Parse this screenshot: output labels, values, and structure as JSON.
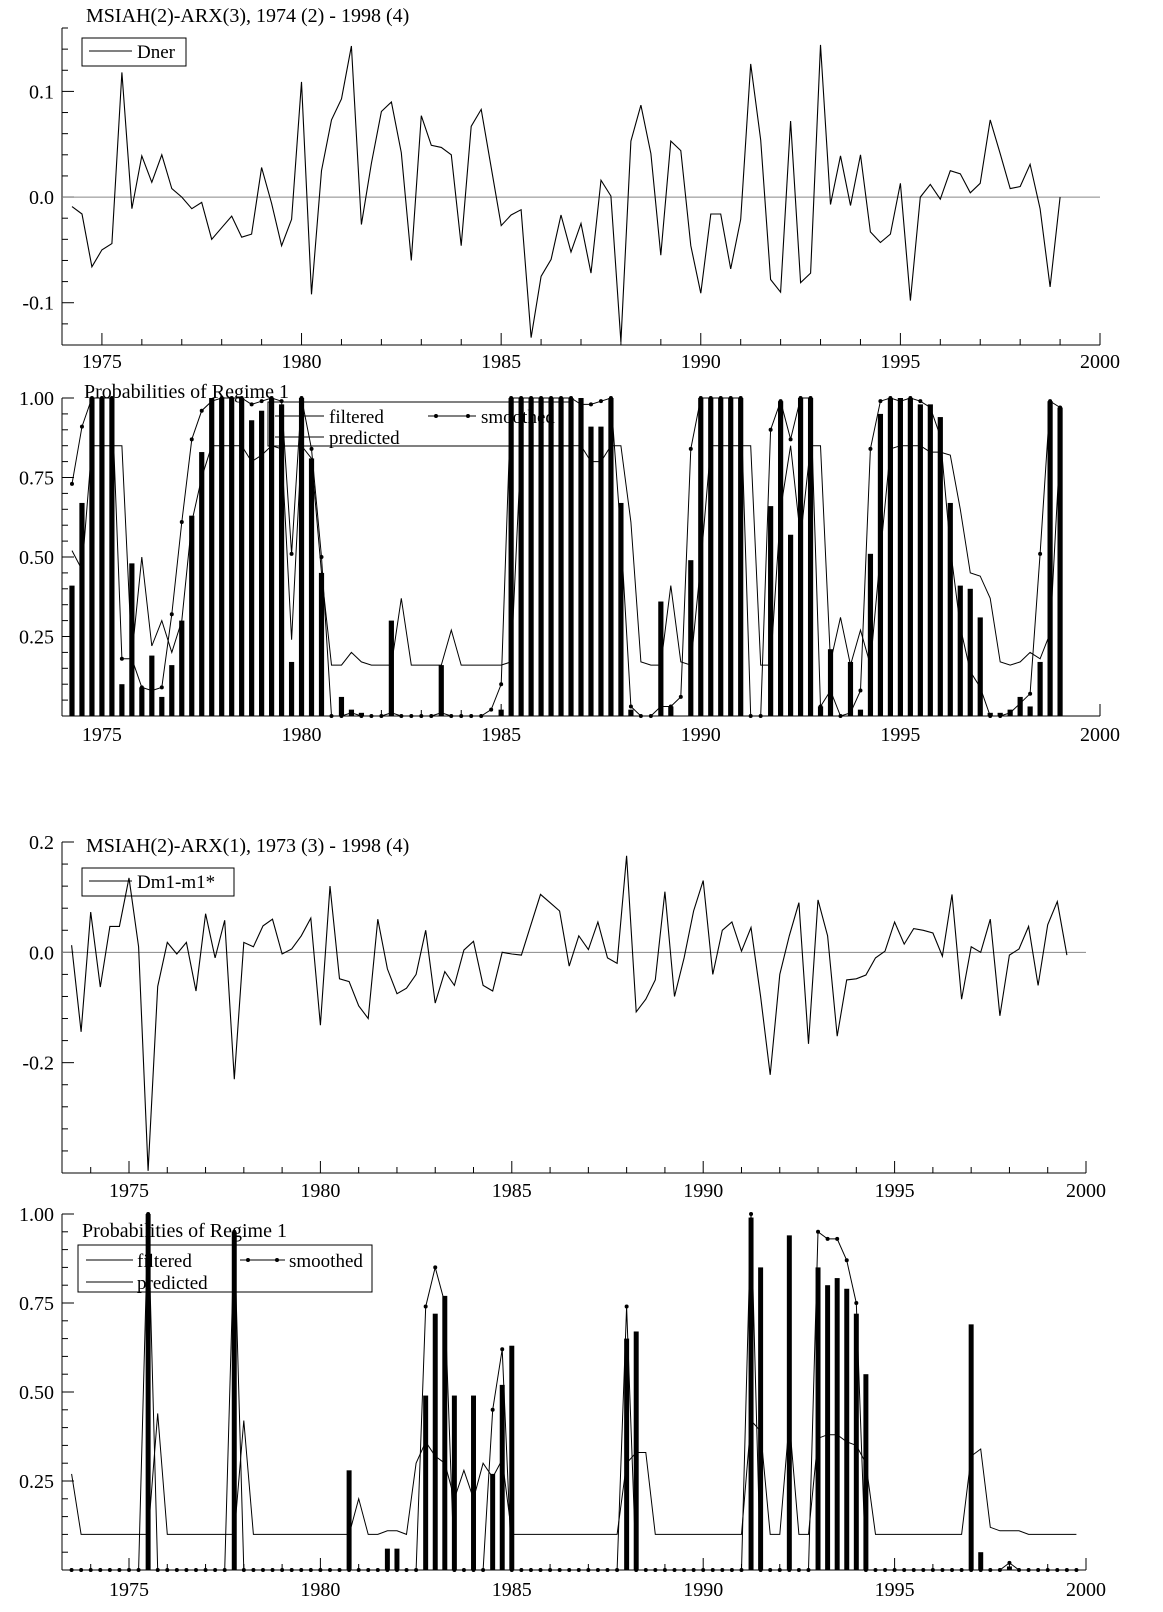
{
  "chart_data": [
    {
      "type": "line",
      "title": "MSIAH(2)-ARX(3), 1974 (2) - 1998 (4)",
      "series": [
        {
          "name": "Dner",
          "x_start": 1974.25,
          "x_step": 0.25,
          "values": [
            -0.009,
            -0.016,
            -0.066,
            -0.05,
            -0.044,
            0.118,
            -0.011,
            0.039,
            0.014,
            0.04,
            0.008,
            0.0,
            -0.011,
            -0.005,
            -0.04,
            -0.029,
            -0.018,
            -0.038,
            -0.035,
            0.028,
            -0.006,
            -0.046,
            -0.021,
            0.109,
            -0.092,
            0.025,
            0.073,
            0.093,
            0.143,
            -0.026,
            0.032,
            0.081,
            0.09,
            0.042,
            -0.06,
            0.077,
            0.049,
            0.047,
            0.04,
            -0.046,
            0.067,
            0.083,
            0.028,
            -0.027,
            -0.017,
            -0.012,
            -0.133,
            -0.075,
            -0.059,
            -0.017,
            -0.052,
            -0.025,
            -0.072,
            0.016,
            0.001,
            -0.137,
            0.053,
            0.087,
            0.041,
            -0.055,
            0.053,
            0.044,
            -0.046,
            -0.091,
            -0.016,
            -0.016,
            -0.068,
            -0.021,
            0.126,
            0.054,
            -0.078,
            -0.09,
            0.072,
            -0.081,
            -0.072,
            0.144,
            -0.007,
            0.039,
            -0.008,
            0.04,
            -0.033,
            -0.043,
            -0.035,
            0.013,
            -0.098,
            0.0,
            0.012,
            -0.002,
            0.025,
            0.022,
            0.004,
            0.013,
            0.073,
            0.041,
            0.008,
            0.01,
            0.031,
            -0.011,
            -0.085,
            0.0
          ]
        }
      ],
      "x_ticks": [
        "1975",
        "1980",
        "1985",
        "1990",
        "1995",
        "2000"
      ],
      "y_ticks": [
        "0.1",
        "0.0",
        "-0.1"
      ],
      "xlim": [
        1974,
        2000
      ],
      "ylim": [
        -0.14,
        0.16
      ]
    },
    {
      "type": "bar",
      "title": "Probabilities of Regime 1",
      "series": [
        {
          "name": "filtered",
          "x_start": 1974.25,
          "x_step": 0.25,
          "values": [
            0.41,
            0.67,
            1.0,
            1.0,
            1.0,
            0.1,
            0.48,
            0.09,
            0.19,
            0.06,
            0.16,
            0.3,
            0.63,
            0.83,
            1.0,
            1.0,
            1.0,
            1.0,
            0.93,
            0.96,
            1.0,
            0.98,
            0.17,
            1.0,
            0.81,
            0.45,
            0.0,
            0.06,
            0.02,
            0.01,
            0.0,
            0.0,
            0.3,
            0.0,
            0.0,
            0.0,
            0.0,
            0.16,
            0.0,
            0.0,
            0.0,
            0.0,
            0.0,
            0.02,
            1.0,
            1.0,
            1.0,
            1.0,
            1.0,
            1.0,
            1.0,
            1.0,
            0.91,
            0.91,
            1.0,
            0.67,
            0.02,
            0.0,
            0.0,
            0.36,
            0.03,
            0.0,
            0.49,
            1.0,
            1.0,
            1.0,
            1.0,
            1.0,
            0.0,
            0.0,
            0.66,
            0.99,
            0.57,
            1.0,
            1.0,
            0.03,
            0.21,
            0.0,
            0.17,
            0.02,
            0.51,
            0.95,
            1.0,
            1.0,
            1.0,
            0.98,
            0.98,
            0.94,
            0.67,
            0.41,
            0.4,
            0.31,
            0.01,
            0.01,
            0.02,
            0.06,
            0.03,
            0.17,
            0.99,
            0.97
          ]
        },
        {
          "name": "smoothed",
          "x_start": 1974.25,
          "x_step": 0.25,
          "values": [
            0.73,
            0.91,
            1.0,
            1.0,
            1.0,
            0.18,
            0.18,
            0.09,
            0.08,
            0.09,
            0.32,
            0.61,
            0.87,
            0.96,
            0.99,
            1.0,
            1.0,
            1.0,
            0.98,
            0.99,
            1.0,
            0.99,
            0.51,
            1.0,
            0.84,
            0.5,
            0.0,
            0.0,
            0.01,
            0.0,
            0.0,
            0.0,
            0.01,
            0.0,
            0.0,
            0.0,
            0.0,
            0.01,
            0.0,
            0.0,
            0.0,
            0.0,
            0.02,
            0.1,
            1.0,
            1.0,
            1.0,
            1.0,
            1.0,
            1.0,
            1.0,
            0.98,
            0.98,
            0.99,
            1.0,
            0.57,
            0.03,
            0.0,
            0.0,
            0.03,
            0.03,
            0.06,
            0.84,
            1.0,
            1.0,
            1.0,
            1.0,
            1.0,
            0.0,
            0.0,
            0.9,
            0.99,
            0.87,
            1.0,
            1.0,
            0.03,
            0.08,
            0.0,
            0.01,
            0.08,
            0.84,
            0.99,
            1.0,
            0.99,
            1.0,
            0.99,
            0.97,
            0.88,
            0.53,
            0.28,
            0.14,
            0.09,
            0.0,
            0.0,
            0.01,
            0.04,
            0.07,
            0.51,
            0.99,
            0.97
          ]
        },
        {
          "name": "predicted",
          "x_start": 1974.25,
          "x_step": 0.25,
          "values": [
            0.52,
            0.46,
            0.85,
            0.85,
            0.85,
            0.85,
            0.19,
            0.5,
            0.22,
            0.3,
            0.2,
            0.3,
            0.61,
            0.75,
            0.85,
            0.85,
            0.85,
            0.85,
            0.8,
            0.82,
            0.85,
            0.84,
            0.24,
            0.85,
            0.81,
            0.45,
            0.16,
            0.16,
            0.2,
            0.17,
            0.16,
            0.16,
            0.16,
            0.37,
            0.16,
            0.16,
            0.16,
            0.16,
            0.27,
            0.16,
            0.16,
            0.16,
            0.16,
            0.16,
            0.17,
            0.85,
            0.85,
            0.85,
            0.85,
            0.85,
            0.85,
            0.85,
            0.8,
            0.8,
            0.85,
            0.85,
            0.61,
            0.17,
            0.16,
            0.16,
            0.41,
            0.17,
            0.16,
            0.48,
            0.85,
            0.85,
            0.85,
            0.85,
            0.85,
            0.16,
            0.16,
            0.65,
            0.85,
            0.56,
            0.85,
            0.85,
            0.17,
            0.31,
            0.16,
            0.27,
            0.16,
            0.51,
            0.84,
            0.85,
            0.85,
            0.85,
            0.83,
            0.83,
            0.82,
            0.65,
            0.45,
            0.44,
            0.37,
            0.17,
            0.16,
            0.17,
            0.2,
            0.18,
            0.26,
            0.85
          ]
        }
      ],
      "x_ticks": [
        "1975",
        "1980",
        "1985",
        "1990",
        "1995",
        "2000"
      ],
      "y_ticks": [
        "1.00",
        "0.75",
        "0.50",
        "0.25"
      ],
      "xlim": [
        1974,
        2000
      ],
      "ylim": [
        0,
        1.0
      ]
    },
    {
      "type": "line",
      "title": "MSIAH(2)-ARX(1), 1973 (3) - 1998 (4)",
      "series": [
        {
          "name": "Dm1-m1*",
          "x_start": 1973.5,
          "x_step": 0.25,
          "values": [
            0.013,
            -0.144,
            0.073,
            -0.063,
            0.047,
            0.047,
            0.135,
            0.01,
            -0.396,
            -0.062,
            0.018,
            -0.003,
            0.018,
            -0.07,
            0.07,
            -0.01,
            0.058,
            -0.23,
            0.018,
            0.01,
            0.048,
            0.06,
            -0.003,
            0.006,
            0.03,
            0.062,
            -0.132,
            0.12,
            -0.048,
            -0.053,
            -0.097,
            -0.12,
            0.06,
            -0.03,
            -0.075,
            -0.065,
            -0.04,
            0.04,
            -0.092,
            -0.035,
            -0.06,
            0.004,
            0.02,
            -0.06,
            -0.07,
            0.0,
            -0.003,
            -0.005,
            0.05,
            0.105,
            0.09,
            0.075,
            -0.025,
            0.03,
            0.005,
            0.055,
            -0.01,
            -0.02,
            0.175,
            -0.108,
            -0.085,
            -0.05,
            0.11,
            -0.08,
            -0.01,
            0.075,
            0.13,
            -0.04,
            0.04,
            0.055,
            0.002,
            0.045,
            -0.08,
            -0.222,
            -0.04,
            0.03,
            0.09,
            -0.166,
            0.095,
            0.03,
            -0.152,
            -0.05,
            -0.048,
            -0.041,
            -0.01,
            0.002,
            0.055,
            0.015,
            0.043,
            0.04,
            0.035,
            -0.007,
            0.105,
            -0.085,
            0.01,
            0.0,
            0.06,
            -0.115,
            -0.005,
            0.006,
            0.047,
            -0.06,
            0.05,
            0.092,
            -0.005
          ]
        }
      ],
      "x_ticks": [
        "1975",
        "1980",
        "1985",
        "1990",
        "1995",
        "2000"
      ],
      "y_ticks": [
        "0.2",
        "0.0",
        "-0.2"
      ],
      "xlim": [
        1973.25,
        2000
      ],
      "ylim": [
        -0.4,
        0.2
      ]
    },
    {
      "type": "bar",
      "title": "Probabilities of Regime 1",
      "series": [
        {
          "name": "filtered",
          "x_start": 1973.5,
          "x_step": 0.25,
          "values": [
            0.0,
            0.0,
            0.0,
            0.0,
            0.0,
            0.0,
            0.0,
            0.0,
            1.0,
            0.0,
            0.0,
            0.0,
            0.0,
            0.0,
            0.0,
            0.0,
            0.0,
            0.95,
            0.0,
            0.0,
            0.0,
            0.0,
            0.0,
            0.0,
            0.0,
            0.0,
            0.0,
            0.0,
            0.0,
            0.28,
            0.0,
            0.0,
            0.0,
            0.06,
            0.06,
            0.0,
            0.0,
            0.49,
            0.72,
            0.77,
            0.49,
            0.0,
            0.49,
            0.0,
            0.27,
            0.52,
            0.63,
            0.0,
            0.0,
            0.0,
            0.0,
            0.0,
            0.0,
            0.0,
            0.0,
            0.0,
            0.0,
            0.0,
            0.65,
            0.67,
            0.0,
            0.0,
            0.0,
            0.0,
            0.0,
            0.0,
            0.0,
            0.0,
            0.0,
            0.0,
            0.0,
            0.99,
            0.85,
            0.0,
            0.0,
            0.94,
            0.0,
            0.0,
            0.85,
            0.8,
            0.82,
            0.79,
            0.72,
            0.55,
            0.0,
            0.0,
            0.0,
            0.0,
            0.0,
            0.0,
            0.0,
            0.0,
            0.0,
            0.0,
            0.69,
            0.05,
            0.0,
            0.0,
            0.01,
            0.0,
            0.0,
            0.0,
            0.0,
            0.0,
            0.0,
            0.0
          ]
        },
        {
          "name": "smoothed",
          "x_start": 1973.5,
          "x_step": 0.25,
          "values": [
            0.0,
            0.0,
            0.0,
            0.0,
            0.0,
            0.0,
            0.0,
            0.0,
            1.0,
            0.0,
            0.0,
            0.0,
            0.0,
            0.0,
            0.0,
            0.0,
            0.0,
            0.95,
            0.0,
            0.0,
            0.0,
            0.0,
            0.0,
            0.0,
            0.0,
            0.0,
            0.0,
            0.0,
            0.0,
            0.0,
            0.0,
            0.0,
            0.0,
            0.0,
            0.0,
            0.0,
            0.0,
            0.74,
            0.85,
            0.75,
            0.0,
            0.0,
            0.0,
            0.0,
            0.45,
            0.62,
            0.0,
            0.0,
            0.0,
            0.0,
            0.0,
            0.0,
            0.0,
            0.0,
            0.0,
            0.0,
            0.0,
            0.0,
            0.74,
            0.0,
            0.0,
            0.0,
            0.0,
            0.0,
            0.0,
            0.0,
            0.0,
            0.0,
            0.0,
            0.0,
            0.0,
            1.0,
            0.0,
            0.0,
            0.0,
            0.0,
            0.0,
            0.0,
            0.95,
            0.93,
            0.93,
            0.87,
            0.75,
            0.0,
            0.0,
            0.0,
            0.0,
            0.0,
            0.0,
            0.0,
            0.0,
            0.0,
            0.0,
            0.0,
            0.0,
            0.0,
            0.0,
            0.0,
            0.02,
            0.0,
            0.0,
            0.0,
            0.0,
            0.0,
            0.0,
            0.0
          ]
        },
        {
          "name": "predicted",
          "x_start": 1973.5,
          "x_step": 0.25,
          "values": [
            0.27,
            0.1,
            0.1,
            0.1,
            0.1,
            0.1,
            0.1,
            0.1,
            0.1,
            0.44,
            0.1,
            0.1,
            0.1,
            0.1,
            0.1,
            0.1,
            0.1,
            0.1,
            0.42,
            0.1,
            0.1,
            0.1,
            0.1,
            0.1,
            0.1,
            0.1,
            0.1,
            0.1,
            0.1,
            0.1,
            0.2,
            0.1,
            0.1,
            0.11,
            0.11,
            0.1,
            0.3,
            0.36,
            0.32,
            0.3,
            0.2,
            0.28,
            0.2,
            0.3,
            0.26,
            0.31,
            0.1,
            0.1,
            0.1,
            0.1,
            0.1,
            0.1,
            0.1,
            0.1,
            0.1,
            0.1,
            0.1,
            0.1,
            0.3,
            0.33,
            0.33,
            0.1,
            0.1,
            0.1,
            0.1,
            0.1,
            0.1,
            0.1,
            0.1,
            0.1,
            0.1,
            0.42,
            0.39,
            0.1,
            0.1,
            0.42,
            0.1,
            0.1,
            0.37,
            0.38,
            0.38,
            0.36,
            0.35,
            0.3,
            0.1,
            0.1,
            0.1,
            0.1,
            0.1,
            0.1,
            0.1,
            0.1,
            0.1,
            0.1,
            0.32,
            0.34,
            0.12,
            0.11,
            0.11,
            0.11,
            0.1,
            0.1,
            0.1,
            0.1,
            0.1,
            0.1
          ]
        }
      ],
      "x_ticks": [
        "1975",
        "1980",
        "1985",
        "1990",
        "1995",
        "2000"
      ],
      "y_ticks": [
        "1.00",
        "0.75",
        "0.50",
        "0.25"
      ],
      "xlim": [
        1973.25,
        2000
      ],
      "ylim": [
        0,
        1.0
      ]
    }
  ]
}
